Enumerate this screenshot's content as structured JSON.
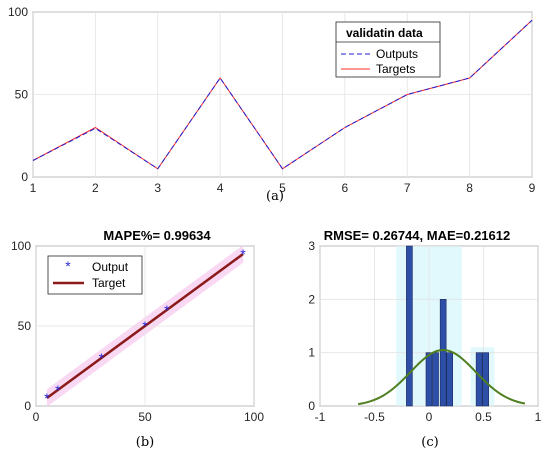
{
  "captions": {
    "a": "(a)",
    "b": "(b)",
    "c": "(c)"
  },
  "chart_data": [
    {
      "type": "line",
      "panel": "a",
      "x": [
        1,
        2,
        3,
        4,
        5,
        6,
        7,
        8,
        9
      ],
      "xlim": [
        1,
        9
      ],
      "ylim": [
        0,
        100
      ],
      "xticks": [
        1,
        2,
        3,
        4,
        5,
        6,
        7,
        8,
        9
      ],
      "yticks": [
        0,
        50,
        100
      ],
      "grid": true,
      "legend": {
        "title": "validatin data",
        "placement": "top-right"
      },
      "series": [
        {
          "name": "Outputs",
          "values": [
            10,
            29.5,
            5,
            60,
            5,
            30,
            50,
            60,
            95
          ],
          "color": "#1f1fd6",
          "style": "dashed"
        },
        {
          "name": "Targets",
          "values": [
            10,
            30,
            5,
            60,
            5,
            30,
            50,
            60,
            95
          ],
          "color": "#ff2b2b",
          "style": "solid"
        }
      ]
    },
    {
      "type": "scatter",
      "panel": "b",
      "title": "MAPE%= 0.99634",
      "xlim": [
        0,
        100
      ],
      "ylim": [
        0,
        100
      ],
      "xticks": [
        0,
        50,
        100
      ],
      "yticks": [
        0,
        50,
        100
      ],
      "grid": true,
      "legend": {
        "placement": "top-left"
      },
      "series": [
        {
          "name": "Output",
          "color": "#2b2bd9",
          "marker": "asterisk",
          "points": [
            [
              5,
              5
            ],
            [
              10,
              10
            ],
            [
              30,
              30
            ],
            [
              50,
              50
            ],
            [
              60,
              60
            ],
            [
              95,
              95
            ]
          ]
        },
        {
          "name": "Target",
          "color": "#8b1a1a",
          "line": [
            [
              5,
              5
            ],
            [
              95,
              95
            ]
          ]
        }
      ]
    },
    {
      "type": "bar",
      "panel": "c",
      "title": "RMSE= 0.26744, MAE=0.21612",
      "xlim": [
        -1,
        1
      ],
      "ylim": [
        0,
        3
      ],
      "xticks": [
        -1,
        -0.5,
        0,
        0.5,
        1
      ],
      "xticklabels": [
        "-1",
        "-0.5",
        "0",
        "0.5",
        "1"
      ],
      "yticks": [
        0,
        1,
        2,
        3
      ],
      "grid": true,
      "bars": [
        {
          "x": -0.18,
          "value": 3
        },
        {
          "x": 0.0,
          "value": 1
        },
        {
          "x": 0.06,
          "value": 1
        },
        {
          "x": 0.13,
          "value": 2
        },
        {
          "x": 0.19,
          "value": 1
        },
        {
          "x": 0.46,
          "value": 1
        },
        {
          "x": 0.52,
          "value": 1
        }
      ],
      "fit_curve": {
        "color": "#4f7f1f",
        "mean": 0.13,
        "sd": 0.3,
        "peak": 1.05,
        "range": [
          -0.65,
          0.88
        ]
      },
      "bar_color": "#2e4fa8"
    }
  ]
}
